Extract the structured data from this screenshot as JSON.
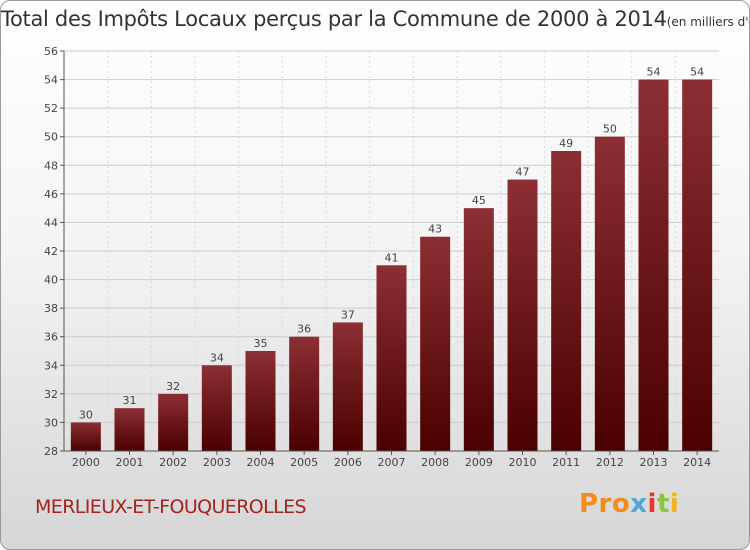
{
  "header": {
    "title": "Total des Impôts Locaux perçus par la Commune de 2000 à 2014",
    "unit": "(en milliers d'€)"
  },
  "footer": {
    "commune": "MERLIEUX-ET-FOUQUEROLLES",
    "logo": [
      "Pro",
      "x",
      "i",
      "t",
      "i"
    ]
  },
  "colors": {
    "bar_top": "#8c2f35",
    "bar_bottom": "#4a0000",
    "commune_text": "#a3241f",
    "grid": "#cccccc"
  },
  "chart_data": {
    "type": "bar",
    "title": "Total des Impôts Locaux perçus par la Commune de 2000 à 2014",
    "xlabel": "",
    "ylabel": "en milliers d'€",
    "categories": [
      "2000",
      "2001",
      "2002",
      "2003",
      "2004",
      "2005",
      "2006",
      "2007",
      "2008",
      "2009",
      "2010",
      "2011",
      "2012",
      "2013",
      "2014"
    ],
    "values": [
      30,
      31,
      32,
      34,
      35,
      36,
      37,
      41,
      43,
      45,
      47,
      49,
      50,
      54,
      54
    ],
    "ylim": [
      28,
      56
    ],
    "yticks": [
      28,
      30,
      32,
      34,
      36,
      38,
      40,
      42,
      44,
      46,
      48,
      50,
      52,
      54,
      56
    ],
    "grid": true,
    "legend": "none"
  }
}
